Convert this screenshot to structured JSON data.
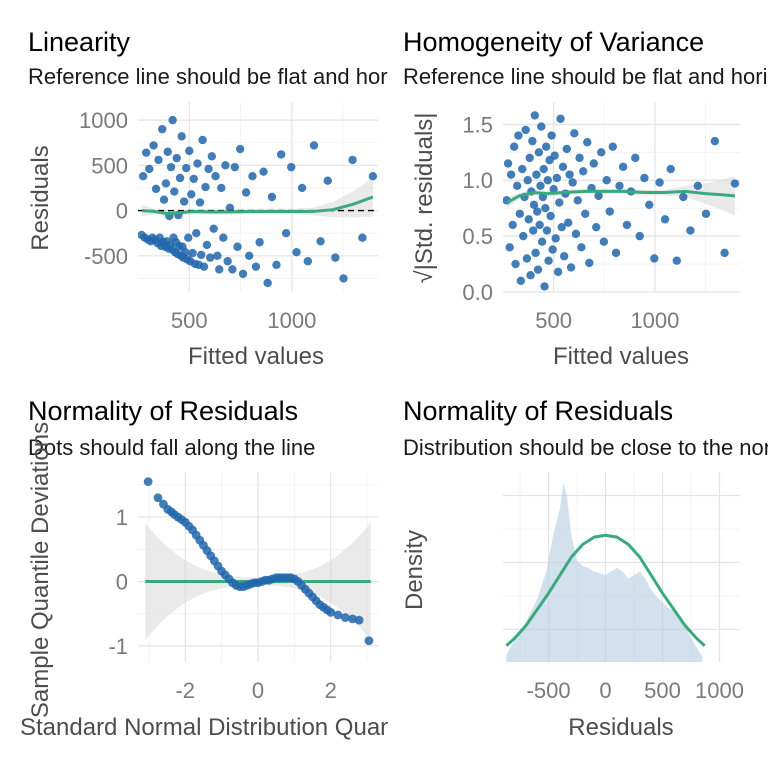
{
  "chart_data": [
    {
      "id": "linearity",
      "type": "scatter",
      "title": "Linearity",
      "subtitle": "Reference line should be flat and horizontal",
      "xlabel": "Fitted values",
      "ylabel": "Residuals",
      "xlim": [
        250,
        1420
      ],
      "ylim": [
        -900,
        1200
      ],
      "xticks": [
        500,
        1000
      ],
      "yticks": [
        -500,
        0,
        500,
        1000
      ],
      "point_color": "#2166ac",
      "smooth_color": "#3aaa7e",
      "ref_line_y": 0,
      "points": [
        [
          268,
          -270
        ],
        [
          275,
          380
        ],
        [
          283,
          -300
        ],
        [
          290,
          640
        ],
        [
          298,
          -320
        ],
        [
          305,
          460
        ],
        [
          312,
          -340
        ],
        [
          320,
          -300
        ],
        [
          326,
          720
        ],
        [
          333,
          -320
        ],
        [
          338,
          240
        ],
        [
          345,
          -360
        ],
        [
          350,
          560
        ],
        [
          356,
          -300
        ],
        [
          362,
          -390
        ],
        [
          368,
          900
        ],
        [
          372,
          -350
        ],
        [
          377,
          120
        ],
        [
          382,
          -400
        ],
        [
          386,
          300
        ],
        [
          390,
          -340
        ],
        [
          395,
          650
        ],
        [
          399,
          -420
        ],
        [
          403,
          -60
        ],
        [
          407,
          -380
        ],
        [
          411,
          480
        ],
        [
          415,
          -430
        ],
        [
          419,
          1000
        ],
        [
          423,
          -300
        ],
        [
          427,
          210
        ],
        [
          431,
          -460
        ],
        [
          435,
          -350
        ],
        [
          439,
          580
        ],
        [
          443,
          -480
        ],
        [
          447,
          -50
        ],
        [
          451,
          -390
        ],
        [
          455,
          360
        ],
        [
          459,
          -500
        ],
        [
          463,
          820
        ],
        [
          467,
          -400
        ],
        [
          471,
          -520
        ],
        [
          475,
          100
        ],
        [
          480,
          -460
        ],
        [
          485,
          470
        ],
        [
          490,
          -540
        ],
        [
          495,
          -300
        ],
        [
          500,
          660
        ],
        [
          505,
          -560
        ],
        [
          510,
          180
        ],
        [
          516,
          -470
        ],
        [
          522,
          350
        ],
        [
          528,
          -590
        ],
        [
          534,
          -250
        ],
        [
          540,
          520
        ],
        [
          546,
          -600
        ],
        [
          552,
          90
        ],
        [
          558,
          -490
        ],
        [
          565,
          780
        ],
        [
          572,
          -620
        ],
        [
          579,
          260
        ],
        [
          586,
          -380
        ],
        [
          594,
          460
        ],
        [
          602,
          -520
        ],
        [
          610,
          600
        ],
        [
          619,
          -200
        ],
        [
          628,
          380
        ],
        [
          637,
          -500
        ],
        [
          646,
          -650
        ],
        [
          656,
          250
        ],
        [
          666,
          -300
        ],
        [
          676,
          500
        ],
        [
          687,
          -560
        ],
        [
          698,
          30
        ],
        [
          710,
          -650
        ],
        [
          722,
          480
        ],
        [
          735,
          -400
        ],
        [
          748,
          680
        ],
        [
          762,
          -700
        ],
        [
          777,
          200
        ],
        [
          792,
          -500
        ],
        [
          808,
          380
        ],
        [
          825,
          -620
        ],
        [
          843,
          -350
        ],
        [
          862,
          430
        ],
        [
          882,
          -800
        ],
        [
          903,
          150
        ],
        [
          925,
          -600
        ],
        [
          948,
          620
        ],
        [
          972,
          -250
        ],
        [
          997,
          480
        ],
        [
          1023,
          -460
        ],
        [
          1050,
          250
        ],
        [
          1078,
          -560
        ],
        [
          1108,
          720
        ],
        [
          1140,
          -340
        ],
        [
          1175,
          330
        ],
        [
          1212,
          -520
        ],
        [
          1252,
          -750
        ],
        [
          1296,
          560
        ],
        [
          1344,
          -300
        ],
        [
          1395,
          380
        ]
      ],
      "smooth": [
        [
          270,
          0
        ],
        [
          330,
          -10
        ],
        [
          400,
          -35
        ],
        [
          450,
          -25
        ],
        [
          520,
          -10
        ],
        [
          600,
          -15
        ],
        [
          700,
          -15
        ],
        [
          800,
          -10
        ],
        [
          900,
          -10
        ],
        [
          1000,
          -10
        ],
        [
          1100,
          -10
        ],
        [
          1200,
          10
        ],
        [
          1300,
          70
        ],
        [
          1395,
          150
        ]
      ]
    },
    {
      "id": "homogeneity",
      "type": "scatter",
      "title": "Homogeneity of Variance",
      "subtitle": "Reference line should be flat and horizontal",
      "xlabel": "Fitted values",
      "ylabel": "√|Std. residuals|",
      "xlim": [
        250,
        1420
      ],
      "ylim": [
        0,
        1.7
      ],
      "xticks": [
        500,
        1000
      ],
      "yticks": [
        0.0,
        0.5,
        1.0,
        1.5
      ],
      "ytick_labels": [
        "0.0",
        "0.5",
        "1.0",
        "1.5"
      ],
      "point_color": "#2166ac",
      "smooth_color": "#3aaa7e",
      "points": [
        [
          268,
          0.82
        ],
        [
          275,
          1.15
        ],
        [
          283,
          0.4
        ],
        [
          290,
          1.05
        ],
        [
          298,
          0.6
        ],
        [
          305,
          1.3
        ],
        [
          312,
          0.25
        ],
        [
          320,
          0.95
        ],
        [
          326,
          1.4
        ],
        [
          333,
          0.7
        ],
        [
          338,
          0.1
        ],
        [
          345,
          1.1
        ],
        [
          350,
          0.5
        ],
        [
          356,
          0.85
        ],
        [
          362,
          1.45
        ],
        [
          368,
          0.3
        ],
        [
          372,
          1.0
        ],
        [
          377,
          0.65
        ],
        [
          382,
          1.2
        ],
        [
          386,
          0.15
        ],
        [
          390,
          0.9
        ],
        [
          395,
          1.35
        ],
        [
          399,
          0.55
        ],
        [
          403,
          0.78
        ],
        [
          407,
          1.58
        ],
        [
          411,
          0.35
        ],
        [
          415,
          1.05
        ],
        [
          419,
          0.72
        ],
        [
          423,
          0.2
        ],
        [
          427,
          1.25
        ],
        [
          431,
          0.6
        ],
        [
          435,
          0.95
        ],
        [
          439,
          1.48
        ],
        [
          443,
          0.45
        ],
        [
          447,
          0.85
        ],
        [
          451,
          1.1
        ],
        [
          455,
          0.05
        ],
        [
          459,
          0.75
        ],
        [
          463,
          1.3
        ],
        [
          467,
          0.55
        ],
        [
          471,
          1.0
        ],
        [
          475,
          0.28
        ],
        [
          480,
          1.18
        ],
        [
          485,
          0.68
        ],
        [
          490,
          1.4
        ],
        [
          495,
          0.38
        ],
        [
          500,
          0.92
        ],
        [
          505,
          1.22
        ],
        [
          510,
          0.48
        ],
        [
          516,
          1.02
        ],
        [
          522,
          0.18
        ],
        [
          528,
          0.8
        ],
        [
          534,
          1.55
        ],
        [
          540,
          0.58
        ],
        [
          546,
          1.12
        ],
        [
          552,
          0.32
        ],
        [
          558,
          0.88
        ],
        [
          565,
          1.28
        ],
        [
          572,
          0.62
        ],
        [
          579,
          1.05
        ],
        [
          586,
          0.22
        ],
        [
          594,
          0.98
        ],
        [
          602,
          1.42
        ],
        [
          610,
          0.52
        ],
        [
          619,
          0.82
        ],
        [
          628,
          1.2
        ],
        [
          637,
          0.4
        ],
        [
          646,
          1.08
        ],
        [
          656,
          0.7
        ],
        [
          666,
          1.34
        ],
        [
          676,
          0.26
        ],
        [
          687,
          0.93
        ],
        [
          698,
          1.15
        ],
        [
          710,
          0.58
        ],
        [
          722,
          0.86
        ],
        [
          735,
          1.25
        ],
        [
          748,
          0.45
        ],
        [
          762,
          1.0
        ],
        [
          777,
          0.72
        ],
        [
          792,
          1.3
        ],
        [
          808,
          0.35
        ],
        [
          825,
          0.95
        ],
        [
          843,
          1.12
        ],
        [
          862,
          0.6
        ],
        [
          882,
          0.9
        ],
        [
          903,
          1.2
        ],
        [
          925,
          0.5
        ],
        [
          948,
          1.02
        ],
        [
          972,
          0.78
        ],
        [
          997,
          0.3
        ],
        [
          1023,
          0.98
        ],
        [
          1050,
          0.65
        ],
        [
          1078,
          1.1
        ],
        [
          1108,
          0.28
        ],
        [
          1140,
          0.85
        ],
        [
          1175,
          0.55
        ],
        [
          1212,
          0.95
        ],
        [
          1252,
          0.7
        ],
        [
          1296,
          1.35
        ],
        [
          1344,
          0.35
        ],
        [
          1395,
          0.97
        ]
      ],
      "smooth": [
        [
          270,
          0.8
        ],
        [
          330,
          0.86
        ],
        [
          400,
          0.89
        ],
        [
          470,
          0.88
        ],
        [
          550,
          0.89
        ],
        [
          650,
          0.9
        ],
        [
          750,
          0.9
        ],
        [
          850,
          0.9
        ],
        [
          950,
          0.89
        ],
        [
          1050,
          0.89
        ],
        [
          1150,
          0.9
        ],
        [
          1250,
          0.88
        ],
        [
          1330,
          0.87
        ],
        [
          1395,
          0.86
        ]
      ]
    },
    {
      "id": "qq",
      "type": "scatter",
      "title": "Normality of Residuals",
      "subtitle": "Dots should fall along the line",
      "xlabel": "Standard Normal Distribution Quantiles",
      "ylabel": "Sample Quantile Deviations",
      "xlim": [
        -3.3,
        3.3
      ],
      "ylim": [
        -1.25,
        1.7
      ],
      "xticks": [
        -2,
        0,
        2
      ],
      "yticks": [
        -1,
        0,
        1
      ],
      "point_color": "#2166ac",
      "line_color": "#3aaa7e",
      "ref_line_y": 0,
      "points": [
        [
          -3.02,
          1.55
        ],
        [
          -2.75,
          1.3
        ],
        [
          -2.6,
          1.2
        ],
        [
          -2.48,
          1.12
        ],
        [
          -2.38,
          1.08
        ],
        [
          -2.3,
          1.04
        ],
        [
          -2.2,
          1.0
        ],
        [
          -2.1,
          0.96
        ],
        [
          -2.0,
          0.92
        ],
        [
          -1.9,
          0.86
        ],
        [
          -1.8,
          0.8
        ],
        [
          -1.7,
          0.72
        ],
        [
          -1.6,
          0.64
        ],
        [
          -1.5,
          0.56
        ],
        [
          -1.4,
          0.48
        ],
        [
          -1.3,
          0.4
        ],
        [
          -1.2,
          0.32
        ],
        [
          -1.1,
          0.24
        ],
        [
          -1.0,
          0.16
        ],
        [
          -0.9,
          0.1
        ],
        [
          -0.8,
          0.04
        ],
        [
          -0.7,
          -0.02
        ],
        [
          -0.6,
          -0.06
        ],
        [
          -0.5,
          -0.08
        ],
        [
          -0.4,
          -0.08
        ],
        [
          -0.3,
          -0.06
        ],
        [
          -0.2,
          -0.04
        ],
        [
          -0.1,
          -0.02
        ],
        [
          0.0,
          -0.02
        ],
        [
          0.1,
          0.0
        ],
        [
          0.2,
          0.02
        ],
        [
          0.3,
          0.02
        ],
        [
          0.4,
          0.04
        ],
        [
          0.5,
          0.06
        ],
        [
          0.6,
          0.06
        ],
        [
          0.7,
          0.06
        ],
        [
          0.8,
          0.06
        ],
        [
          0.9,
          0.06
        ],
        [
          1.0,
          0.04
        ],
        [
          1.1,
          0.0
        ],
        [
          1.2,
          -0.06
        ],
        [
          1.3,
          -0.12
        ],
        [
          1.4,
          -0.18
        ],
        [
          1.5,
          -0.24
        ],
        [
          1.6,
          -0.3
        ],
        [
          1.7,
          -0.36
        ],
        [
          1.8,
          -0.4
        ],
        [
          1.9,
          -0.44
        ],
        [
          2.0,
          -0.48
        ],
        [
          2.2,
          -0.52
        ],
        [
          2.4,
          -0.56
        ],
        [
          2.6,
          -0.58
        ],
        [
          2.78,
          -0.6
        ],
        [
          3.05,
          -0.92
        ]
      ]
    },
    {
      "id": "density",
      "type": "area",
      "title": "Normality of Residuals",
      "subtitle": "Distribution should be close to the normal curve",
      "xlabel": "Residuals",
      "ylabel": "Density",
      "xlim": [
        -900,
        1180
      ],
      "xticks": [
        -500,
        0,
        500,
        1000
      ],
      "fill_color": "#b5cde3",
      "curve_color": "#3aaa7e",
      "empirical_density": [
        [
          -870,
          0.04
        ],
        [
          -800,
          0.12
        ],
        [
          -700,
          0.22
        ],
        [
          -600,
          0.35
        ],
        [
          -520,
          0.5
        ],
        [
          -460,
          0.7
        ],
        [
          -400,
          0.85
        ],
        [
          -370,
          0.99
        ],
        [
          -340,
          0.92
        ],
        [
          -300,
          0.7
        ],
        [
          -250,
          0.56
        ],
        [
          -200,
          0.53
        ],
        [
          -150,
          0.52
        ],
        [
          -100,
          0.5
        ],
        [
          -50,
          0.49
        ],
        [
          0,
          0.48
        ],
        [
          50,
          0.5
        ],
        [
          100,
          0.52
        ],
        [
          150,
          0.5
        ],
        [
          200,
          0.46
        ],
        [
          250,
          0.48
        ],
        [
          300,
          0.5
        ],
        [
          350,
          0.46
        ],
        [
          400,
          0.4
        ],
        [
          450,
          0.36
        ],
        [
          500,
          0.33
        ],
        [
          550,
          0.3
        ],
        [
          600,
          0.28
        ],
        [
          650,
          0.24
        ],
        [
          700,
          0.2
        ],
        [
          780,
          0.1
        ],
        [
          850,
          0.03
        ]
      ],
      "normal_curve": [
        [
          -870,
          0.09
        ],
        [
          -800,
          0.13
        ],
        [
          -700,
          0.2
        ],
        [
          -600,
          0.29
        ],
        [
          -500,
          0.38
        ],
        [
          -400,
          0.48
        ],
        [
          -300,
          0.58
        ],
        [
          -200,
          0.65
        ],
        [
          -100,
          0.69
        ],
        [
          0,
          0.7
        ],
        [
          100,
          0.69
        ],
        [
          200,
          0.65
        ],
        [
          300,
          0.58
        ],
        [
          400,
          0.48
        ],
        [
          500,
          0.38
        ],
        [
          600,
          0.29
        ],
        [
          700,
          0.2
        ],
        [
          800,
          0.13
        ],
        [
          870,
          0.09
        ]
      ]
    }
  ]
}
